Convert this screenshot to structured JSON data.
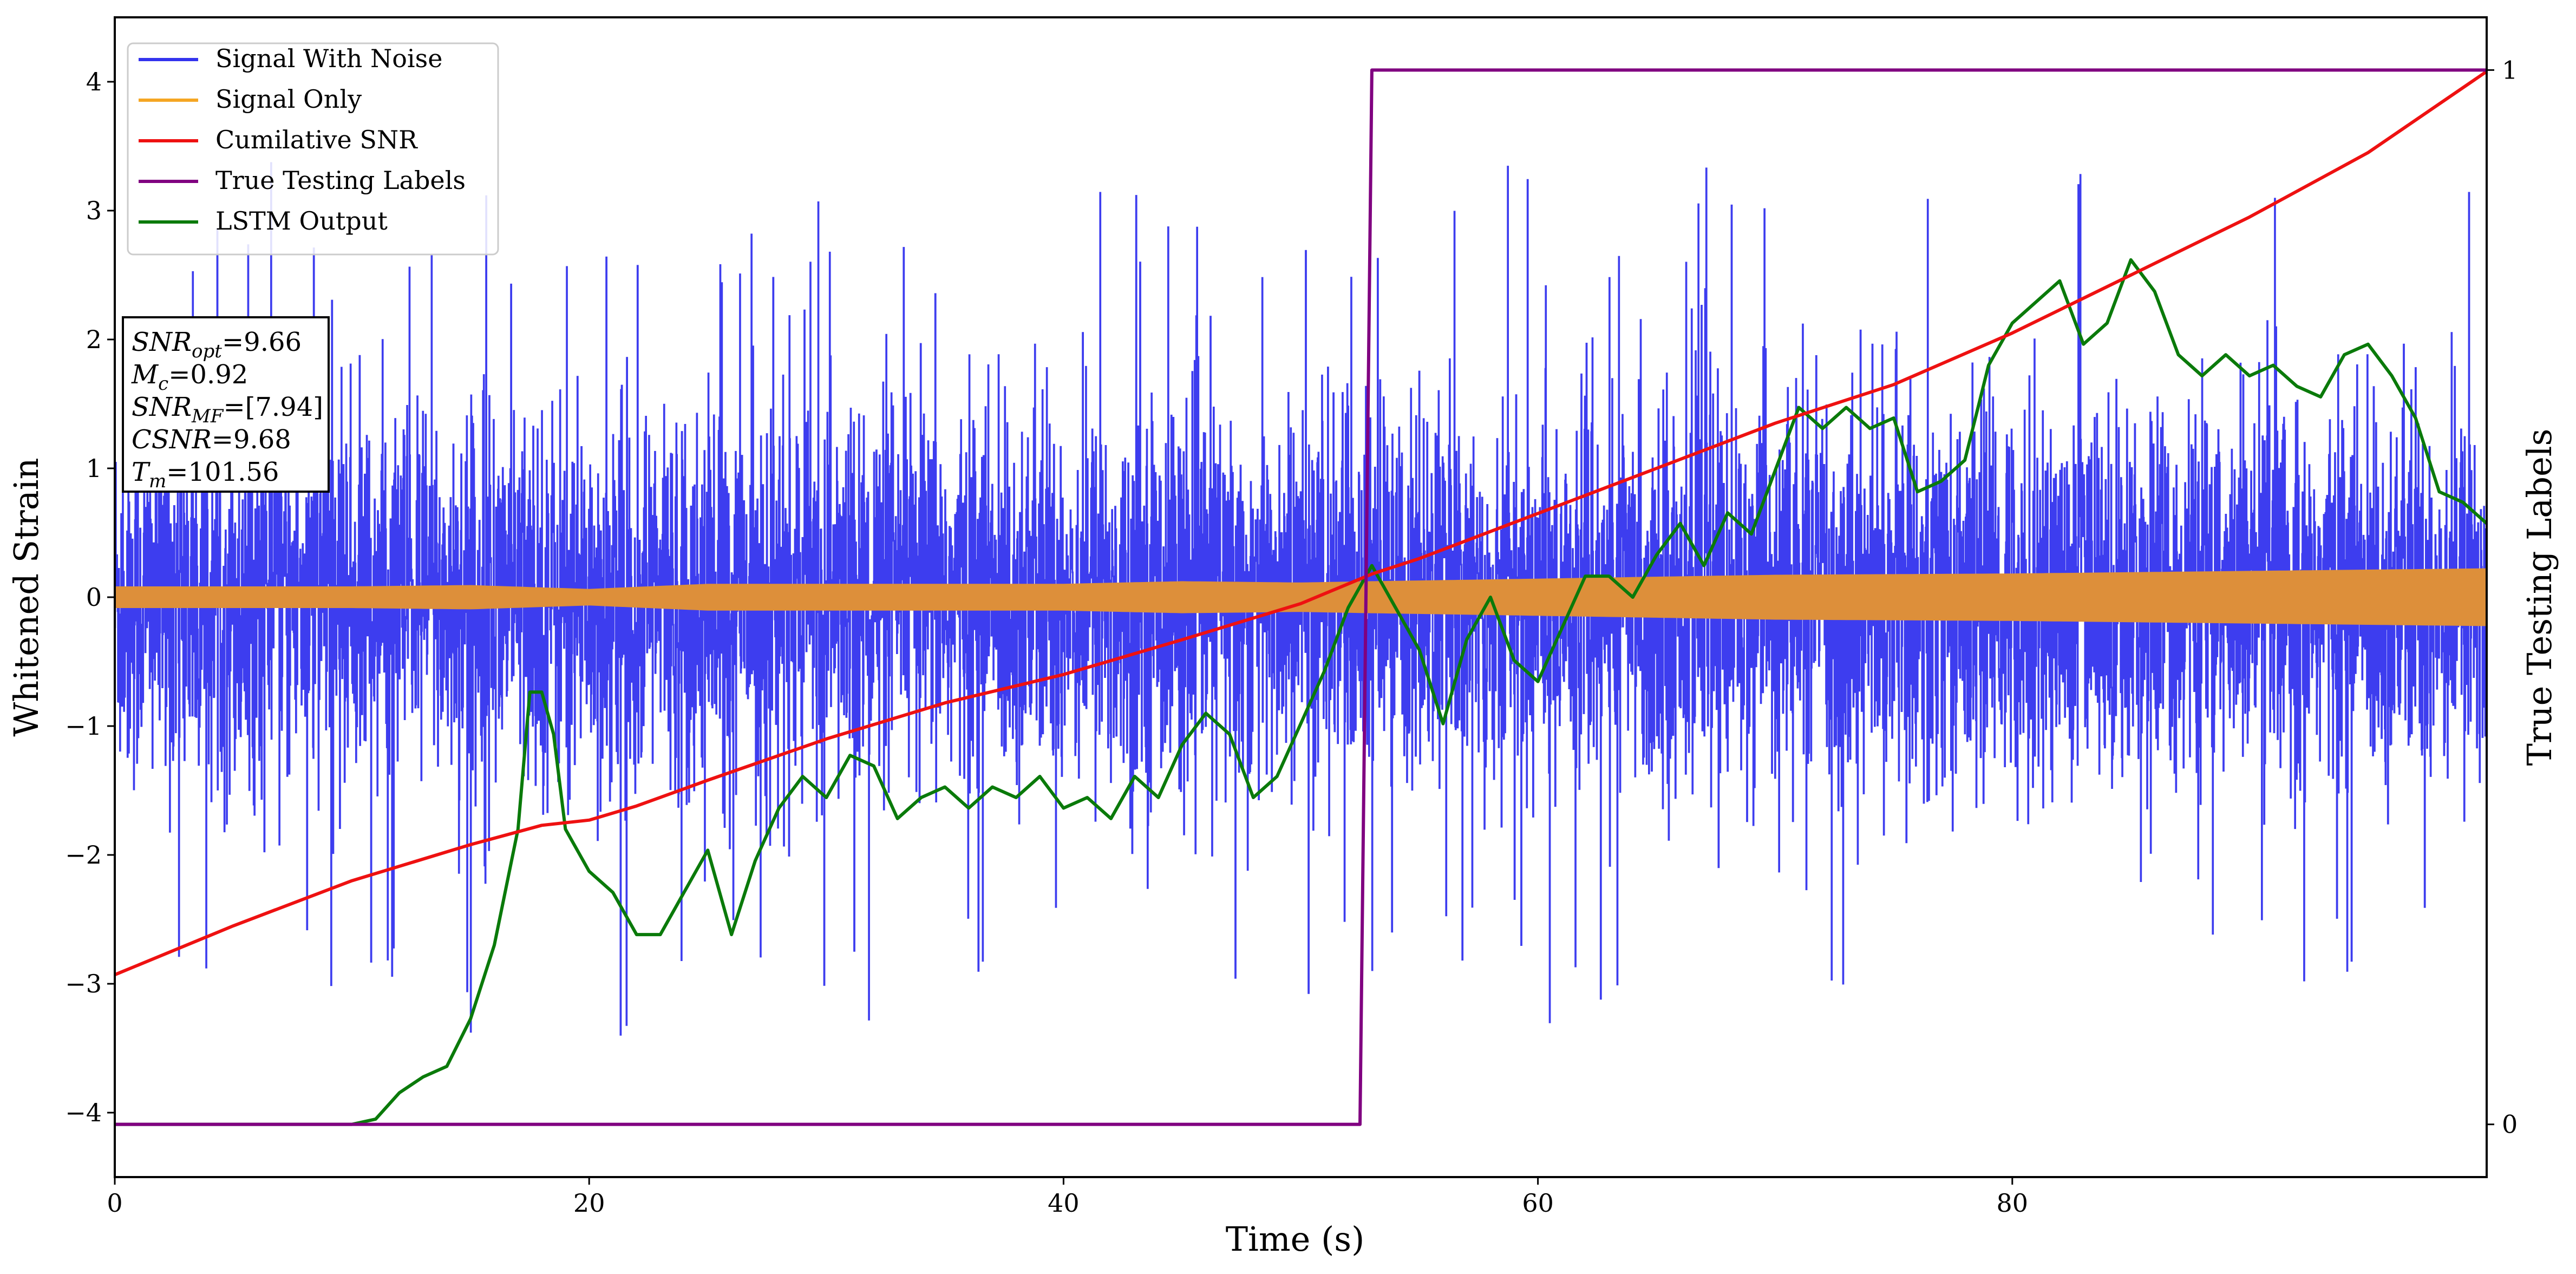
{
  "chart_data": {
    "type": "line",
    "xlabel": "Time (s)",
    "ylabel": "Whitened Strain",
    "y2label": "True Testing Labels",
    "xlim": [
      0,
      100
    ],
    "ylim": [
      -4.5,
      4.5
    ],
    "y2lim": [
      -0.05,
      1.05
    ],
    "x_ticks": [
      0,
      20,
      40,
      60,
      80
    ],
    "y_ticks": [
      -4,
      -3,
      -2,
      -1,
      0,
      1,
      2,
      3,
      4
    ],
    "y2_ticks": [
      0,
      1
    ],
    "tick_labels": {
      "x": [
        "0",
        "20",
        "40",
        "60",
        "80"
      ],
      "y": [
        "−4",
        "−3",
        "−2",
        "−1",
        "0",
        "1",
        "2",
        "3",
        "4"
      ],
      "y2": [
        "0",
        "1"
      ]
    },
    "grid": false,
    "legend_position": "upper-left",
    "legend": [
      {
        "label": "Signal With Noise",
        "color": "#3333ee"
      },
      {
        "label": "Signal Only",
        "color": "#f5a623"
      },
      {
        "label": "Cumilative SNR",
        "color": "#ee1111"
      },
      {
        "label": "True Testing Labels",
        "color": "#800080"
      },
      {
        "label": "LSTM Output",
        "color": "#0a7a0a"
      }
    ],
    "annotation": {
      "lines": [
        {
          "name": "SNR",
          "sub": "opt",
          "value": "=9.66"
        },
        {
          "name": "M",
          "sub": "c",
          "value": "=0.92"
        },
        {
          "name": "SNR",
          "sub": "MF",
          "value": "=[7.94]"
        },
        {
          "name": "CSNR",
          "sub": "",
          "value": "=9.68"
        },
        {
          "name": "T",
          "sub": "m",
          "value": "=101.56"
        }
      ]
    },
    "series": [
      {
        "name": "Signal With Noise",
        "axis": "left",
        "color": "#3333ee",
        "style": "noise",
        "std_envelope": 0.75,
        "spike_extremes_approx": {
          "max": 4.1,
          "min": -3.55
        }
      },
      {
        "name": "Signal Only",
        "axis": "left",
        "color": "#dd8f3a",
        "style": "band",
        "x": [
          0,
          10,
          15,
          20,
          25,
          30,
          40,
          45,
          50,
          53,
          60,
          70,
          80,
          90,
          100
        ],
        "amplitude": [
          0.08,
          0.08,
          0.09,
          0.06,
          0.1,
          0.1,
          0.1,
          0.12,
          0.11,
          0.12,
          0.14,
          0.17,
          0.18,
          0.2,
          0.22
        ]
      },
      {
        "name": "Cumilative SNR",
        "axis": "left",
        "color": "#ee1111",
        "style": "line",
        "x": [
          0,
          5,
          10,
          15,
          18,
          20,
          22,
          25,
          30,
          35,
          40,
          45,
          50,
          53,
          55,
          60,
          65,
          70,
          75,
          80,
          85,
          90,
          95,
          100
        ],
        "values": [
          -2.93,
          -2.55,
          -2.2,
          -1.92,
          -1.77,
          -1.73,
          -1.62,
          -1.42,
          -1.1,
          -0.82,
          -0.6,
          -0.33,
          -0.05,
          0.18,
          0.3,
          0.65,
          1.0,
          1.35,
          1.65,
          2.05,
          2.5,
          2.95,
          3.45,
          4.08
        ]
      },
      {
        "name": "True Testing Labels",
        "axis": "right",
        "color": "#800080",
        "style": "line",
        "x": [
          0,
          52.5,
          53.0,
          100
        ],
        "values": [
          0,
          0,
          1,
          1
        ]
      },
      {
        "name": "LSTM Output",
        "axis": "right",
        "color": "#0a7a0a",
        "style": "line",
        "x": [
          0,
          10,
          11,
          12,
          13,
          14,
          15,
          16,
          17,
          17.5,
          18,
          18.5,
          19,
          20,
          21,
          22,
          23,
          24,
          25,
          26,
          27,
          28,
          29,
          30,
          31,
          32,
          33,
          34,
          35,
          36,
          37,
          38,
          39,
          40,
          41,
          42,
          43,
          44,
          45,
          46,
          47,
          48,
          49,
          50,
          51,
          52,
          53,
          54,
          55,
          56,
          57,
          58,
          59,
          60,
          61,
          62,
          63,
          64,
          65,
          66,
          67,
          68,
          69,
          70,
          71,
          72,
          73,
          74,
          75,
          76,
          77,
          78,
          79,
          80,
          81,
          82,
          83,
          84,
          85,
          86,
          87,
          88,
          89,
          90,
          91,
          92,
          93,
          94,
          95,
          96,
          97,
          98,
          99,
          100
        ],
        "values": [
          0,
          0,
          0.005,
          0.03,
          0.045,
          0.055,
          0.1,
          0.17,
          0.28,
          0.41,
          0.41,
          0.37,
          0.28,
          0.24,
          0.22,
          0.18,
          0.18,
          0.22,
          0.26,
          0.18,
          0.25,
          0.3,
          0.33,
          0.31,
          0.35,
          0.34,
          0.29,
          0.31,
          0.32,
          0.3,
          0.32,
          0.31,
          0.33,
          0.3,
          0.31,
          0.29,
          0.33,
          0.31,
          0.36,
          0.39,
          0.37,
          0.31,
          0.33,
          0.38,
          0.43,
          0.49,
          0.53,
          0.49,
          0.45,
          0.38,
          0.46,
          0.5,
          0.44,
          0.42,
          0.47,
          0.52,
          0.52,
          0.5,
          0.54,
          0.57,
          0.53,
          0.58,
          0.56,
          0.62,
          0.68,
          0.66,
          0.68,
          0.66,
          0.67,
          0.6,
          0.61,
          0.63,
          0.72,
          0.76,
          0.78,
          0.8,
          0.74,
          0.76,
          0.82,
          0.79,
          0.73,
          0.71,
          0.73,
          0.71,
          0.72,
          0.7,
          0.69,
          0.73,
          0.74,
          0.71,
          0.67,
          0.6,
          0.59,
          0.57
        ]
      }
    ]
  }
}
